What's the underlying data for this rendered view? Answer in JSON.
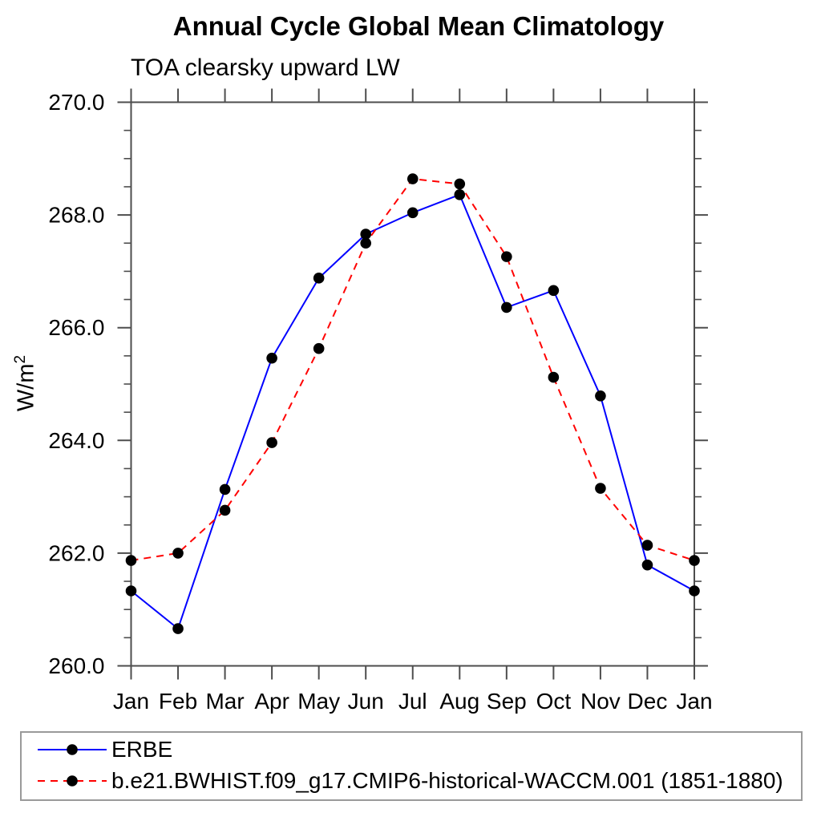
{
  "chart": {
    "title": "Annual Cycle Global Mean Climatology",
    "subtitle": "TOA clearsky upward LW"
  },
  "chart_data": {
    "type": "line",
    "title": "Annual Cycle Global Mean Climatology",
    "subtitle": "TOA clearsky upward LW",
    "ylabel": "W/m²",
    "ylabel_base": "W/m",
    "ylabel_exp": "2",
    "xlabel": "",
    "categories": [
      "Jan",
      "Feb",
      "Mar",
      "Apr",
      "May",
      "Jun",
      "Jul",
      "Aug",
      "Sep",
      "Oct",
      "Nov",
      "Dec",
      "Jan"
    ],
    "ylim": [
      260.0,
      270.0
    ],
    "ytick_step": 2.0,
    "yminor_step": 0.5,
    "ytick_labels": [
      "260.0",
      "262.0",
      "264.0",
      "266.0",
      "268.0",
      "270.0"
    ],
    "grid": false,
    "legend_position": "bottom-left-box",
    "axis_color": "#4d4d4d",
    "text_color": "#000000",
    "series": [
      {
        "name": "ERBE",
        "color": "#0000ff",
        "style": "solid",
        "marker": "filled-circle",
        "marker_color": "#000000",
        "values": [
          261.33,
          260.66,
          263.13,
          265.46,
          266.88,
          267.66,
          268.04,
          268.36,
          266.36,
          266.66,
          264.79,
          261.79,
          261.33
        ]
      },
      {
        "name": "b.e21.BWHIST.f09_g17.CMIP6-historical-WACCM.001 (1851-1880)",
        "color": "#ff0000",
        "style": "dashed",
        "marker": "filled-circle",
        "marker_color": "#000000",
        "values": [
          261.87,
          262.0,
          262.76,
          263.96,
          265.63,
          267.5,
          268.64,
          268.55,
          267.26,
          265.12,
          263.15,
          262.14,
          261.87
        ]
      }
    ]
  }
}
